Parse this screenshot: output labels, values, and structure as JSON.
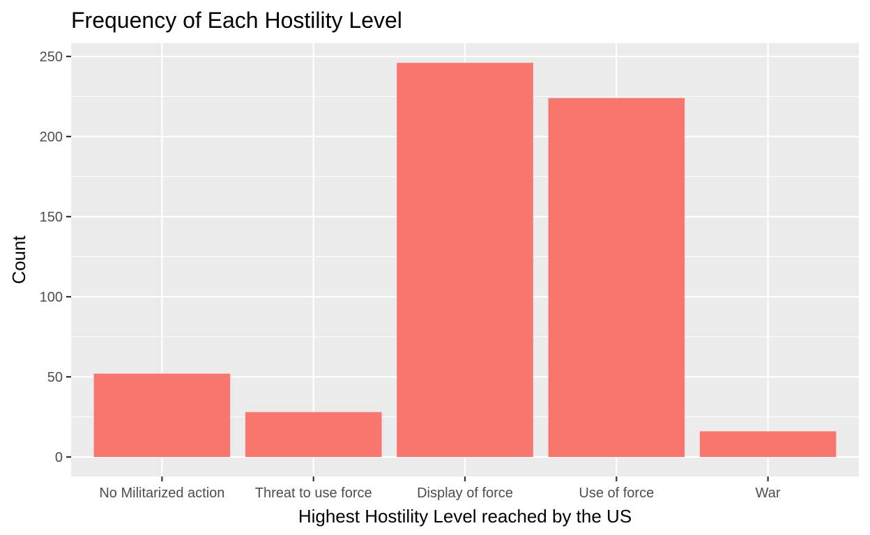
{
  "chart_data": {
    "type": "bar",
    "title": "Frequency of Each Hostility Level",
    "xlabel": "Highest Hostility Level reached by the US",
    "ylabel": "Count",
    "categories": [
      "No Militarized action",
      "Threat to use force",
      "Display of force",
      "Use of force",
      "War"
    ],
    "values": [
      52,
      28,
      246,
      224,
      16
    ],
    "ylim": [
      0,
      260
    ],
    "yticks": [
      0,
      50,
      100,
      150,
      200,
      250
    ],
    "yminor": [
      25,
      75,
      125,
      175,
      225
    ],
    "bar_color": "#f8766d",
    "panel_color": "#ebebeb",
    "grid": true,
    "legend": "none"
  }
}
